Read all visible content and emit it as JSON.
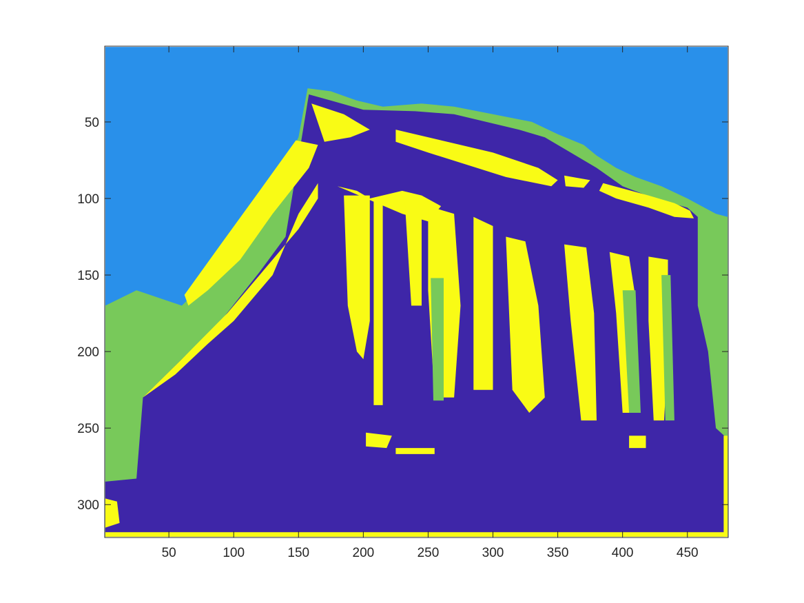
{
  "chart_data": {
    "type": "heatmap",
    "title": "",
    "xlabel": "",
    "ylabel": "",
    "xlim": [
      1,
      481
    ],
    "ylim": [
      1,
      321
    ],
    "y_direction": "reverse",
    "x_ticks": [
      50,
      100,
      150,
      200,
      250,
      300,
      350,
      400,
      450
    ],
    "x_tick_labels": [
      "50",
      "100",
      "150",
      "200",
      "250",
      "300",
      "350",
      "400",
      "450"
    ],
    "y_ticks": [
      50,
      100,
      150,
      200,
      250,
      300
    ],
    "y_tick_labels": [
      "50",
      "100",
      "150",
      "200",
      "250",
      "300"
    ],
    "grid": false,
    "legend": "none",
    "colormap": "parula",
    "classes": [
      {
        "label": 1,
        "color": "#3e26a8"
      },
      {
        "label": 2,
        "color": "#2990ea"
      },
      {
        "label": 3,
        "color": "#78c95a"
      },
      {
        "label": 4,
        "color": "#f9fb15"
      }
    ],
    "description_of_regions": [
      {
        "class": 2,
        "region": "sky in the upper-left and upper-right background"
      },
      {
        "class": 3,
        "region": "thin outline around building roofline and ground edges"
      },
      {
        "class": 4,
        "region": "sunlit column faces and roof highlights"
      },
      {
        "class": 1,
        "region": "building body, shadows and ground"
      }
    ],
    "regions": [
      {
        "class": 2,
        "poly": [
          [
            1,
            1
          ],
          [
            481,
            1
          ],
          [
            481,
            321
          ],
          [
            1,
            321
          ]
        ]
      },
      {
        "class": 3,
        "poly": [
          [
            1,
            170
          ],
          [
            25,
            160
          ],
          [
            60,
            170
          ],
          [
            90,
            145
          ],
          [
            115,
            110
          ],
          [
            135,
            85
          ],
          [
            150,
            60
          ],
          [
            157,
            28
          ],
          [
            175,
            30
          ],
          [
            195,
            36
          ],
          [
            215,
            40
          ],
          [
            245,
            38
          ],
          [
            270,
            40
          ],
          [
            300,
            45
          ],
          [
            330,
            50
          ],
          [
            350,
            58
          ],
          [
            370,
            65
          ],
          [
            380,
            72
          ],
          [
            395,
            80
          ],
          [
            410,
            86
          ],
          [
            430,
            92
          ],
          [
            450,
            100
          ],
          [
            461,
            105
          ],
          [
            472,
            110
          ],
          [
            481,
            112
          ],
          [
            481,
            321
          ],
          [
            1,
            321
          ]
        ]
      },
      {
        "class": 1,
        "poly": [
          [
            1,
            285
          ],
          [
            25,
            283
          ],
          [
            30,
            230
          ],
          [
            60,
            205
          ],
          [
            90,
            180
          ],
          [
            120,
            148
          ],
          [
            140,
            125
          ],
          [
            158,
            32
          ],
          [
            175,
            36
          ],
          [
            200,
            42
          ],
          [
            240,
            43
          ],
          [
            270,
            45
          ],
          [
            320,
            55
          ],
          [
            340,
            60
          ],
          [
            360,
            70
          ],
          [
            380,
            80
          ],
          [
            400,
            92
          ],
          [
            425,
            100
          ],
          [
            450,
            106
          ],
          [
            458,
            112
          ],
          [
            458,
            170
          ],
          [
            466,
            200
          ],
          [
            472,
            250
          ],
          [
            481,
            257
          ],
          [
            481,
            321
          ],
          [
            1,
            321
          ]
        ]
      },
      {
        "class": 4,
        "poly": [
          [
            160,
            38
          ],
          [
            185,
            45
          ],
          [
            205,
            55
          ],
          [
            190,
            60
          ],
          [
            170,
            63
          ]
        ]
      },
      {
        "class": 4,
        "poly": [
          [
            148,
            62
          ],
          [
            165,
            65
          ],
          [
            158,
            80
          ],
          [
            130,
            110
          ],
          [
            105,
            140
          ],
          [
            80,
            160
          ],
          [
            65,
            170
          ],
          [
            62,
            163
          ],
          [
            90,
            130
          ],
          [
            120,
            95
          ]
        ]
      },
      {
        "class": 4,
        "poly": [
          [
            30,
            230
          ],
          [
            60,
            205
          ],
          [
            95,
            175
          ],
          [
            125,
            145
          ],
          [
            150,
            120
          ],
          [
            165,
            100
          ],
          [
            165,
            90
          ],
          [
            150,
            110
          ],
          [
            140,
            130
          ],
          [
            130,
            150
          ],
          [
            120,
            160
          ],
          [
            100,
            180
          ],
          [
            80,
            195
          ],
          [
            55,
            215
          ]
        ]
      },
      {
        "class": 4,
        "poly": [
          [
            225,
            55
          ],
          [
            260,
            62
          ],
          [
            300,
            70
          ],
          [
            335,
            80
          ],
          [
            350,
            88
          ],
          [
            345,
            92
          ],
          [
            310,
            86
          ],
          [
            280,
            78
          ],
          [
            250,
            70
          ],
          [
            225,
            63
          ]
        ]
      },
      {
        "class": 4,
        "poly": [
          [
            355,
            85
          ],
          [
            375,
            88
          ],
          [
            370,
            93
          ],
          [
            356,
            92
          ]
        ]
      },
      {
        "class": 4,
        "poly": [
          [
            385,
            90
          ],
          [
            420,
            98
          ],
          [
            440,
            103
          ],
          [
            452,
            108
          ],
          [
            455,
            113
          ],
          [
            440,
            112
          ],
          [
            420,
            106
          ],
          [
            395,
            100
          ],
          [
            382,
            95
          ]
        ]
      },
      {
        "class": 4,
        "poly": [
          [
            180,
            92
          ],
          [
            195,
            95
          ],
          [
            205,
            100
          ],
          [
            230,
            95
          ],
          [
            245,
            98
          ],
          [
            260,
            105
          ],
          [
            250,
            115
          ],
          [
            230,
            110
          ]
        ]
      },
      {
        "class": 4,
        "poly": [
          [
            185,
            98
          ],
          [
            205,
            98
          ],
          [
            205,
            180
          ],
          [
            200,
            205
          ],
          [
            195,
            200
          ],
          [
            188,
            170
          ]
        ]
      },
      {
        "class": 4,
        "poly": [
          [
            208,
            102
          ],
          [
            215,
            100
          ],
          [
            215,
            235
          ],
          [
            208,
            235
          ]
        ]
      },
      {
        "class": 4,
        "poly": [
          [
            232,
            102
          ],
          [
            245,
            102
          ],
          [
            245,
            170
          ],
          [
            237,
            170
          ]
        ]
      },
      {
        "class": 4,
        "poly": [
          [
            250,
            105
          ],
          [
            270,
            110
          ],
          [
            275,
            170
          ],
          [
            270,
            230
          ],
          [
            255,
            230
          ],
          [
            250,
            160
          ]
        ]
      },
      {
        "class": 4,
        "poly": [
          [
            285,
            112
          ],
          [
            300,
            118
          ],
          [
            300,
            225
          ],
          [
            285,
            225
          ]
        ]
      },
      {
        "class": 4,
        "poly": [
          [
            310,
            125
          ],
          [
            325,
            128
          ],
          [
            335,
            170
          ],
          [
            340,
            230
          ],
          [
            328,
            240
          ],
          [
            315,
            225
          ]
        ]
      },
      {
        "class": 4,
        "poly": [
          [
            355,
            130
          ],
          [
            372,
            132
          ],
          [
            378,
            175
          ],
          [
            380,
            245
          ],
          [
            368,
            245
          ],
          [
            360,
            180
          ]
        ]
      },
      {
        "class": 4,
        "poly": [
          [
            390,
            135
          ],
          [
            405,
            138
          ],
          [
            410,
            165
          ],
          [
            412,
            240
          ],
          [
            400,
            240
          ],
          [
            395,
            175
          ]
        ]
      },
      {
        "class": 4,
        "poly": [
          [
            420,
            138
          ],
          [
            435,
            140
          ],
          [
            435,
            200
          ],
          [
            432,
            245
          ],
          [
            424,
            245
          ],
          [
            420,
            180
          ]
        ]
      },
      {
        "class": 3,
        "poly": [
          [
            252,
            152
          ],
          [
            262,
            152
          ],
          [
            262,
            232
          ],
          [
            254,
            232
          ]
        ]
      },
      {
        "class": 3,
        "poly": [
          [
            400,
            160
          ],
          [
            410,
            160
          ],
          [
            414,
            240
          ],
          [
            405,
            240
          ]
        ]
      },
      {
        "class": 3,
        "poly": [
          [
            430,
            150
          ],
          [
            437,
            150
          ],
          [
            440,
            245
          ],
          [
            433,
            245
          ]
        ]
      },
      {
        "class": 4,
        "poly": [
          [
            1,
            318
          ],
          [
            481,
            318
          ],
          [
            481,
            321
          ],
          [
            1,
            321
          ]
        ]
      },
      {
        "class": 4,
        "poly": [
          [
            1,
            296
          ],
          [
            10,
            298
          ],
          [
            12,
            312
          ],
          [
            1,
            315
          ]
        ]
      },
      {
        "class": 4,
        "poly": [
          [
            478,
            255
          ],
          [
            481,
            255
          ],
          [
            481,
            321
          ],
          [
            478,
            321
          ]
        ]
      },
      {
        "class": 4,
        "poly": [
          [
            202,
            253
          ],
          [
            222,
            255
          ],
          [
            218,
            263
          ],
          [
            202,
            262
          ]
        ]
      },
      {
        "class": 4,
        "poly": [
          [
            225,
            263
          ],
          [
            255,
            263
          ],
          [
            255,
            267
          ],
          [
            225,
            267
          ]
        ]
      },
      {
        "class": 4,
        "poly": [
          [
            405,
            255
          ],
          [
            418,
            255
          ],
          [
            418,
            263
          ],
          [
            405,
            263
          ]
        ]
      }
    ]
  }
}
